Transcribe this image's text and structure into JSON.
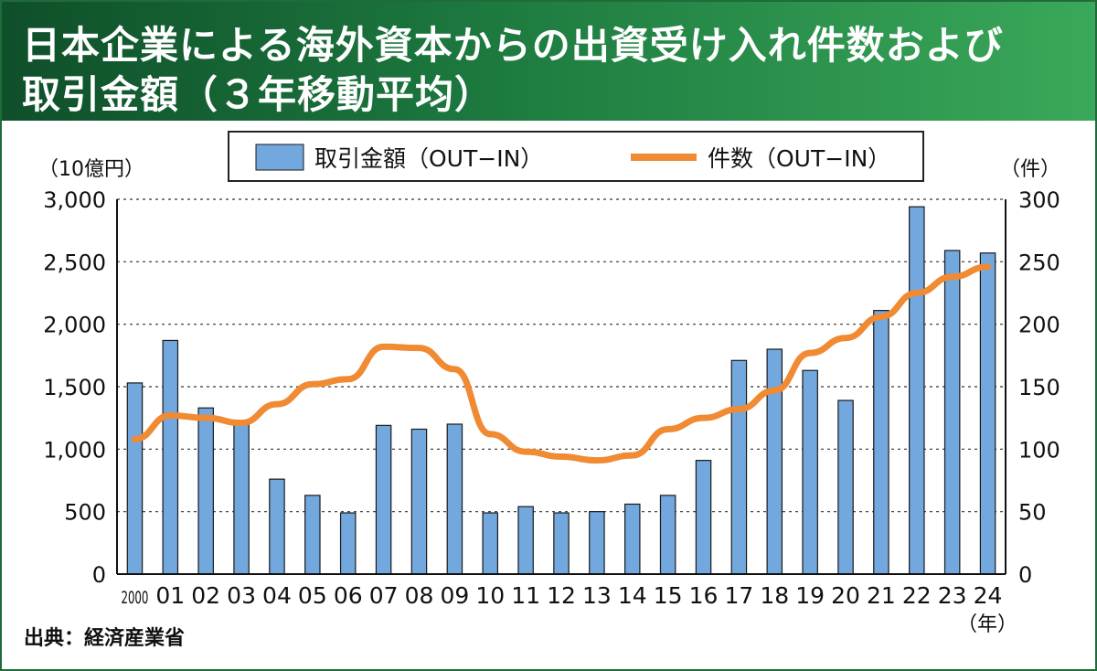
{
  "title_line1": "日本企業による海外資本からの出資受け入れ件数および",
  "title_line2": "取引金額（３年移動平均）",
  "source": "出典：経済産業省",
  "colors": {
    "bar": "#72a8de",
    "bar_stroke": "#1a1a1a",
    "line": "#f08a33",
    "header": "#1d7a3f"
  },
  "chart_data": {
    "type": "bar",
    "categories": [
      "2000",
      "01",
      "02",
      "03",
      "04",
      "05",
      "06",
      "07",
      "08",
      "09",
      "10",
      "11",
      "12",
      "13",
      "14",
      "15",
      "16",
      "17",
      "18",
      "19",
      "20",
      "21",
      "22",
      "23",
      "24"
    ],
    "series": [
      {
        "name": "取引金額（OUT−IN）",
        "type": "bar",
        "axis": "left",
        "values": [
          1530,
          1870,
          1330,
          1200,
          760,
          630,
          490,
          1190,
          1160,
          1200,
          490,
          540,
          490,
          500,
          560,
          630,
          910,
          1710,
          1800,
          1630,
          1390,
          2110,
          2940,
          2590,
          2570
        ]
      },
      {
        "name": "件数（OUT−IN）",
        "type": "line",
        "axis": "right",
        "values": [
          108,
          127,
          125,
          121,
          136,
          152,
          156,
          182,
          181,
          164,
          112,
          98,
          94,
          91,
          95,
          116,
          125,
          132,
          147,
          177,
          189,
          206,
          225,
          238,
          246
        ]
      }
    ],
    "ylabel_left": "（10億円）",
    "ylabel_right": "（件）",
    "xlabel": "（年）",
    "ylim_left": [
      0,
      3000
    ],
    "ylim_right": [
      0,
      300
    ],
    "yticks_left": [
      "0",
      "500",
      "1,000",
      "1,500",
      "2,000",
      "2,500",
      "3,000"
    ],
    "yticks_right": [
      "0",
      "50",
      "100",
      "150",
      "200",
      "250",
      "300"
    ],
    "grid": true,
    "legend_position": "top-center"
  }
}
